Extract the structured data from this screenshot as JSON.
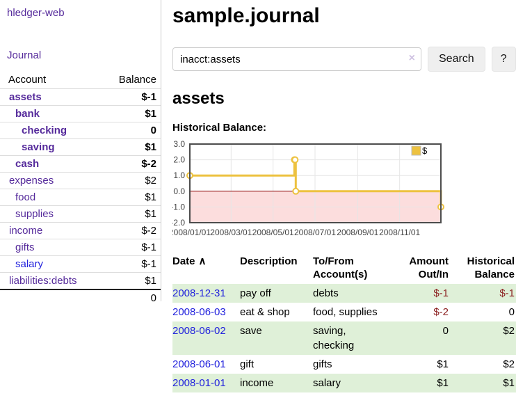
{
  "app": {
    "title": "hledger-web"
  },
  "colors": {
    "link_purple": "#552a9b",
    "link_blue": "#2222dd",
    "negative_strong": "#8b1c1c",
    "negative_soft": "#b87f7f",
    "row_green": "#dff0d8",
    "series_gold": "#EDC240"
  },
  "sidebar": {
    "journal_link": "Journal",
    "accounts_table": {
      "headers": {
        "account": "Account",
        "balance": "Balance"
      },
      "rows": [
        {
          "name": "assets",
          "depth": 1,
          "bold": true,
          "balance": "$-1",
          "balance_style": "neg-strong"
        },
        {
          "name": "bank",
          "depth": 2,
          "bold": true,
          "balance": "$1",
          "balance_style": "pos"
        },
        {
          "name": "checking",
          "depth": 3,
          "bold": true,
          "balance": "0",
          "balance_style": "pos"
        },
        {
          "name": "saving",
          "depth": 3,
          "bold": true,
          "balance": "$1",
          "balance_style": "pos"
        },
        {
          "name": "cash",
          "depth": 2,
          "bold": true,
          "balance": "$-2",
          "balance_style": "neg-strong"
        },
        {
          "name": "expenses",
          "depth": 1,
          "bold": false,
          "balance": "$2",
          "balance_style": "pos"
        },
        {
          "name": "food",
          "depth": 2,
          "bold": false,
          "balance": "$1",
          "balance_style": "pos"
        },
        {
          "name": "supplies",
          "depth": 2,
          "bold": false,
          "balance": "$1",
          "balance_style": "pos"
        },
        {
          "name": "income",
          "depth": 1,
          "bold": false,
          "balance": "$-2",
          "balance_style": "neg-soft"
        },
        {
          "name": "gifts",
          "depth": 2,
          "bold": false,
          "balance": "$-1",
          "balance_style": "neg-soft"
        },
        {
          "name": "salary",
          "depth": 2,
          "bold": false,
          "balance": "$-1",
          "balance_style": "neg-soft",
          "link_color": "blue"
        },
        {
          "name": "liabilities:debts",
          "depth": 1,
          "bold": false,
          "balance": "$1",
          "balance_style": "pos"
        }
      ],
      "total": "0"
    }
  },
  "main": {
    "title": "sample.journal",
    "search": {
      "value": "inacct:assets",
      "clear_icon": "×",
      "button": "Search",
      "help_button": "?"
    },
    "account_heading": "assets",
    "chart_label": "Historical Balance:"
  },
  "chart_data": {
    "type": "line",
    "title": "Historical Balance",
    "steps": true,
    "ylim": [
      -2,
      3
    ],
    "x_range": [
      "2008-01-01",
      "2008-12-31"
    ],
    "grid": true,
    "grid_color": "#e6e6e6",
    "border_color": "#4d4d4d",
    "tick_color": "#444444",
    "y_ticks": [
      {
        "value": 3,
        "label": "3.0"
      },
      {
        "value": 2,
        "label": "2.0"
      },
      {
        "value": 1,
        "label": "1.0"
      },
      {
        "value": 0,
        "label": "0.0"
      },
      {
        "value": -1,
        "label": "-1.0"
      },
      {
        "value": -2,
        "label": "-2.0"
      }
    ],
    "x_ticks": [
      {
        "date": "2008-01-01",
        "label": "2008/01/01"
      },
      {
        "date": "2008-03-01",
        "label": "2008/03/01"
      },
      {
        "date": "2008-05-01",
        "label": "2008/05/01"
      },
      {
        "date": "2008-07-01",
        "label": "2008/07/01"
      },
      {
        "date": "2008-09-01",
        "label": "2008/09/01"
      },
      {
        "date": "2008-11-01",
        "label": "2008/11/01"
      }
    ],
    "negative_region": {
      "fill": "#fcdddd",
      "zero_line_color": "#8b0000"
    },
    "legend": {
      "label": "$",
      "position": "top-right"
    },
    "series": [
      {
        "name": "$",
        "color": "#EDC240",
        "points": [
          [
            "2008-01-01",
            1
          ],
          [
            "2008-06-01",
            2
          ],
          [
            "2008-06-02",
            2
          ],
          [
            "2008-06-03",
            0
          ],
          [
            "2008-12-31",
            -1
          ]
        ]
      }
    ]
  },
  "transactions": {
    "headers": {
      "date": "Date",
      "sort_icon": "∧",
      "description": "Description",
      "accounts": "To/From Account(s)",
      "amount": "Amount Out/In",
      "balance": "Historical Balance"
    },
    "rows": [
      {
        "date": "2008-12-31",
        "description": "pay off",
        "accounts": "debts",
        "amount": "$-1",
        "amount_style": "neg",
        "balance": "$-1",
        "balance_style": "neg",
        "shade": true
      },
      {
        "date": "2008-06-03",
        "description": "eat & shop",
        "accounts": "food, supplies",
        "amount": "$-2",
        "amount_style": "neg",
        "balance": "0",
        "balance_style": "pos",
        "shade": false
      },
      {
        "date": "2008-06-02",
        "description": "save",
        "accounts": "saving, checking",
        "amount": "0",
        "amount_style": "pos",
        "balance": "$2",
        "balance_style": "pos",
        "shade": true
      },
      {
        "date": "2008-06-01",
        "description": "gift",
        "accounts": "gifts",
        "amount": "$1",
        "amount_style": "pos",
        "balance": "$2",
        "balance_style": "pos",
        "shade": false
      },
      {
        "date": "2008-01-01",
        "description": "income",
        "accounts": "salary",
        "amount": "$1",
        "amount_style": "pos",
        "balance": "$1",
        "balance_style": "pos",
        "shade": true
      }
    ]
  }
}
